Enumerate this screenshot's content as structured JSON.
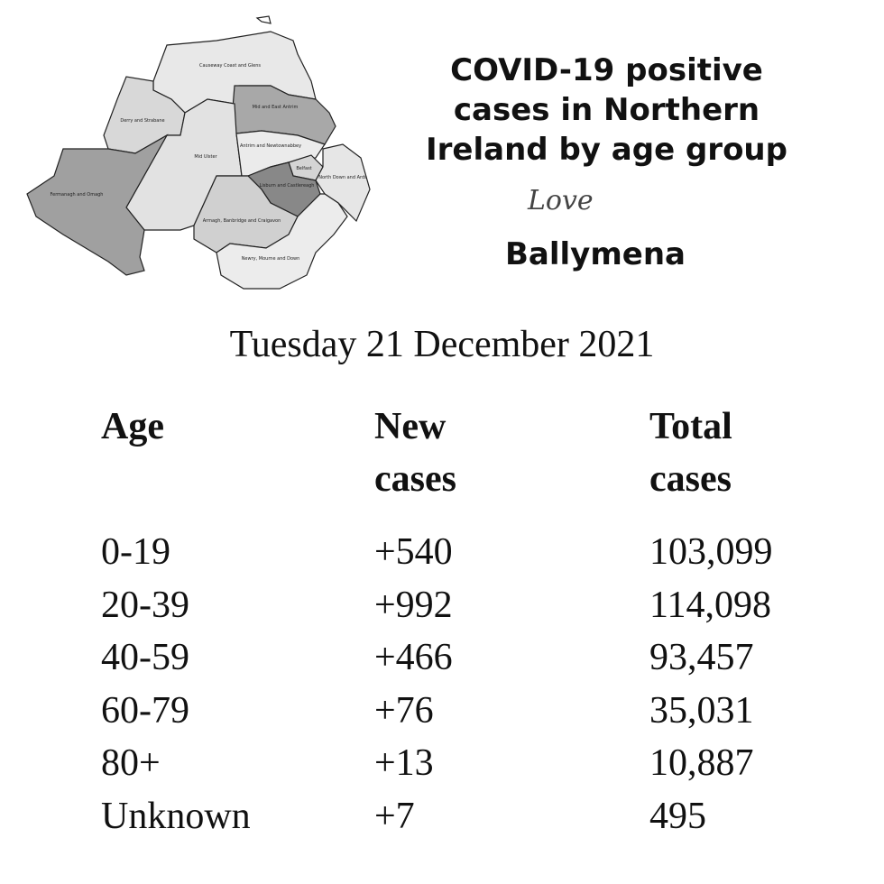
{
  "map": {
    "regions": [
      "Causeway Coast and Glens",
      "Derry and Strabane",
      "Mid and East Antrim",
      "Mid Ulster",
      "Fermanagh and Omagh",
      "Antrim and Newtownabbey",
      "Belfast",
      "North Down and Ards",
      "Lisburn and Castlereagh",
      "Armagh, Banbridge and Craigavon",
      "Newry, Mourne and Down"
    ]
  },
  "header": {
    "title": [
      "COVID-19 positive",
      "cases in Northern",
      "Ireland by age group"
    ],
    "logo_script": "Love",
    "logo_name": "Ballymena"
  },
  "date": "Tuesday 21 December 2021",
  "table": {
    "columns": [
      "Age",
      "New cases",
      "Total cases"
    ],
    "rows": [
      [
        "0-19",
        "+540",
        "103,099"
      ],
      [
        "20-39",
        "+992",
        "114,098"
      ],
      [
        "40-59",
        "+466",
        "93,457"
      ],
      [
        "60-79",
        "+76",
        "35,031"
      ],
      [
        "80+",
        "+13",
        "10,887"
      ],
      [
        "Unknown",
        "+7",
        "495"
      ]
    ]
  }
}
